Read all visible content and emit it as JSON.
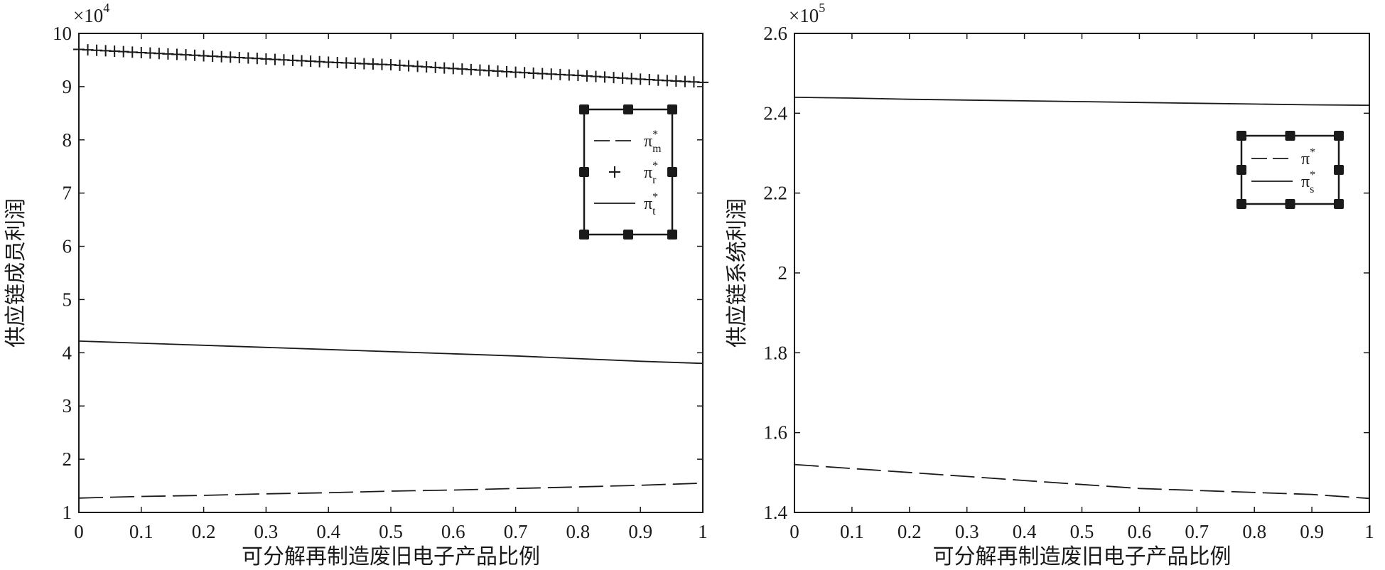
{
  "chart_data": [
    {
      "type": "line",
      "xlabel": "可分解再制造废旧电子产品比例",
      "ylabel": "供应链成员利润",
      "y_multiplier": "×10",
      "y_multiplier_exp": "4",
      "xlim": [
        0,
        1
      ],
      "ylim": [
        1,
        10
      ],
      "xticks": [
        "0",
        "0.1",
        "0.2",
        "0.3",
        "0.4",
        "0.5",
        "0.6",
        "0.7",
        "0.8",
        "0.9",
        "1"
      ],
      "yticks": [
        "1",
        "2",
        "3",
        "4",
        "5",
        "6",
        "7",
        "8",
        "9",
        "10"
      ],
      "legend_position": "upper-right",
      "x": [
        0,
        0.1,
        0.2,
        0.3,
        0.4,
        0.5,
        0.6,
        0.7,
        0.8,
        0.9,
        1
      ],
      "series": [
        {
          "name": "π*m",
          "legend_main": "π",
          "legend_sup": "*",
          "legend_sub": "m",
          "style": "dashed",
          "values": [
            1.27,
            1.3,
            1.32,
            1.35,
            1.37,
            1.4,
            1.42,
            1.45,
            1.48,
            1.51,
            1.55
          ]
        },
        {
          "name": "π*r",
          "legend_main": "π",
          "legend_sup": "*",
          "legend_sub": "r",
          "style": "plus",
          "values": [
            9.7,
            9.64,
            9.58,
            9.52,
            9.46,
            9.41,
            9.34,
            9.27,
            9.21,
            9.14,
            9.08
          ]
        },
        {
          "name": "π*t",
          "legend_main": "π",
          "legend_sup": "*",
          "legend_sub": "t",
          "style": "solid",
          "values": [
            4.22,
            4.18,
            4.14,
            4.1,
            4.06,
            4.02,
            3.98,
            3.94,
            3.89,
            3.84,
            3.8
          ]
        }
      ]
    },
    {
      "type": "line",
      "xlabel": "可分解再制造废旧电子产品比例",
      "ylabel": "供应链系统利润",
      "y_multiplier": "×10",
      "y_multiplier_exp": "5",
      "xlim": [
        0,
        1
      ],
      "ylim": [
        1.4,
        2.6
      ],
      "xticks": [
        "0",
        "0.1",
        "0.2",
        "0.3",
        "0.4",
        "0.5",
        "0.6",
        "0.7",
        "0.8",
        "0.9",
        "1"
      ],
      "yticks": [
        "1.4",
        "1.6",
        "1.8",
        "2",
        "2.2",
        "2.4",
        "2.6"
      ],
      "legend_position": "upper-right",
      "x": [
        0,
        0.1,
        0.2,
        0.3,
        0.4,
        0.5,
        0.6,
        0.7,
        0.8,
        0.9,
        1
      ],
      "series": [
        {
          "name": "π*",
          "legend_main": "π",
          "legend_sup": "*",
          "legend_sub": "",
          "style": "dashed",
          "values": [
            1.52,
            1.51,
            1.5,
            1.49,
            1.48,
            1.47,
            1.46,
            1.455,
            1.45,
            1.445,
            1.435
          ]
        },
        {
          "name": "π*s",
          "legend_main": "π",
          "legend_sup": "*",
          "legend_sub": "s",
          "style": "solid",
          "values": [
            2.44,
            2.438,
            2.435,
            2.433,
            2.431,
            2.429,
            2.427,
            2.425,
            2.423,
            2.421,
            2.42
          ]
        }
      ]
    }
  ]
}
